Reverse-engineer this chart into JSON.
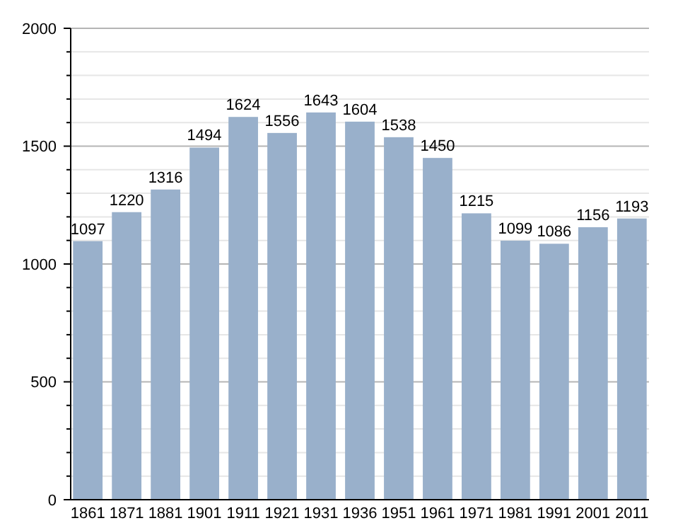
{
  "chart_data": {
    "type": "bar",
    "categories": [
      "1861",
      "1871",
      "1881",
      "1901",
      "1911",
      "1921",
      "1931",
      "1936",
      "1951",
      "1961",
      "1971",
      "1981",
      "1991",
      "2001",
      "2011"
    ],
    "values": [
      1097,
      1220,
      1316,
      1494,
      1624,
      1556,
      1643,
      1604,
      1538,
      1450,
      1215,
      1099,
      1086,
      1156,
      1193
    ],
    "color": "#99b0cb",
    "ylim": [
      0,
      2000
    ],
    "yticks": [
      0,
      {
        "value": 100,
        "label": null
      },
      {
        "value": 200,
        "label": null
      },
      {
        "value": 300,
        "label": null
      },
      {
        "value": 400,
        "label": null
      },
      500,
      {
        "value": 600,
        "label": null
      },
      {
        "value": 700,
        "label": null
      },
      {
        "value": 800,
        "label": null
      },
      {
        "value": 900,
        "label": null
      },
      1000,
      {
        "value": 1100,
        "label": null
      },
      {
        "value": 1200,
        "label": null
      },
      {
        "value": 1300,
        "label": null
      },
      {
        "value": 1400,
        "label": null
      },
      1500,
      {
        "value": 1600,
        "label": null
      },
      {
        "value": 1700,
        "label": null
      },
      {
        "value": 1800,
        "label": null
      },
      {
        "value": 1900,
        "label": null
      },
      2000
    ],
    "grid": "y",
    "data_labels": true
  }
}
